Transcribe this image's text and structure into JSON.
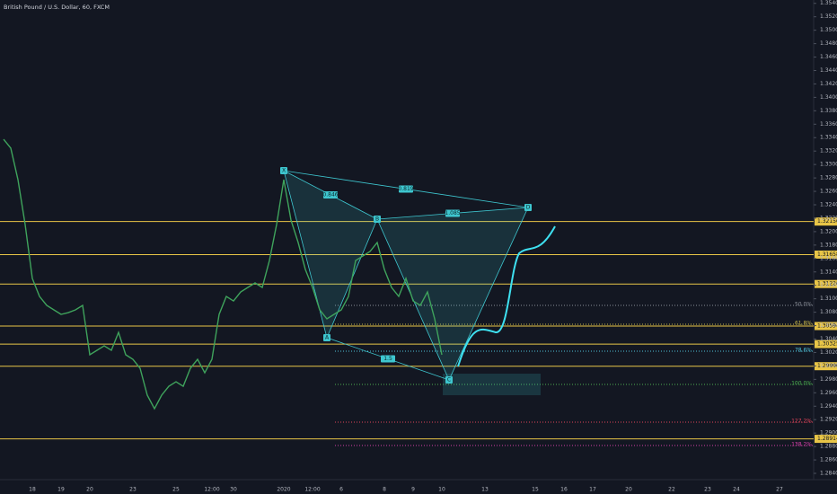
{
  "chart_data": {
    "type": "line",
    "title": "British Pound / U.S. Dollar, 60, FXCM",
    "color": "#3fa35c",
    "categories": [
      null,
      null,
      null,
      null,
      "18",
      null,
      null,
      null,
      "19",
      null,
      null,
      null,
      "20",
      null,
      null,
      null,
      null,
      null,
      "23",
      null,
      null,
      null,
      null,
      null,
      "25",
      null,
      null,
      null,
      null,
      "12:00",
      null,
      null,
      "30",
      null,
      null,
      null,
      null,
      null,
      null,
      "2020",
      null,
      null,
      null,
      "12:00",
      null,
      null,
      null,
      "6",
      null,
      null,
      null,
      null,
      null,
      "8",
      null,
      null,
      null,
      "9",
      null,
      null,
      null,
      "10",
      null,
      null,
      null,
      null,
      null,
      "13",
      null,
      null,
      null,
      null,
      null,
      null,
      "15",
      null,
      null,
      null,
      "16",
      null,
      null,
      null,
      "17",
      null,
      null,
      null,
      null,
      "20",
      null,
      null,
      null,
      null,
      null,
      "22",
      null,
      null,
      null,
      null,
      "23",
      null,
      null,
      null,
      "24",
      null,
      null,
      null,
      null,
      null,
      "27",
      null,
      null,
      null,
      null
    ],
    "values": [
      1.33376,
      1.33243,
      1.32774,
      1.32106,
      1.31303,
      1.31035,
      1.30902,
      1.30835,
      1.30768,
      1.30794,
      1.30835,
      1.30902,
      1.30166,
      1.30233,
      1.30299,
      1.30233,
      1.305,
      1.30166,
      1.30099,
      1.29965,
      1.29564,
      1.29363,
      1.29564,
      1.29697,
      1.29764,
      1.29697,
      1.29965,
      1.30099,
      1.29898,
      1.30099,
      1.30768,
      1.31035,
      1.30968,
      1.31102,
      1.31169,
      1.31236,
      1.31169,
      1.3157,
      1.32106,
      1.32774,
      1.32172,
      1.31838,
      1.31437,
      1.31169,
      1.30835,
      1.30701,
      1.30768,
      1.30835,
      1.31035,
      1.3157,
      1.31637,
      1.31704,
      1.31838,
      1.31437,
      1.31169,
      1.31035,
      1.31303,
      1.30968,
      1.30902,
      1.31102,
      1.30701,
      1.30166,
      null,
      null,
      null,
      null,
      null,
      null,
      null,
      null,
      null,
      null,
      null,
      null,
      null,
      null,
      null,
      null,
      null,
      null,
      null,
      null,
      null,
      null,
      null,
      null,
      null,
      null,
      null,
      null,
      null,
      null,
      null,
      null,
      null,
      null,
      null,
      null,
      null,
      null,
      null,
      null,
      null,
      null,
      null,
      null,
      null,
      null,
      null,
      null,
      null,
      null,
      null
    ],
    "ylim": [
      1.2836,
      1.3545
    ],
    "yticks": [
      {
        "value": 1.284,
        "label": "1.28400"
      },
      {
        "value": 1.286,
        "label": "1.28600"
      },
      {
        "value": 1.288,
        "label": "1.28800"
      },
      {
        "value": 1.29,
        "label": "1.29000"
      },
      {
        "value": 1.292,
        "label": "1.29200"
      },
      {
        "value": 1.294,
        "label": "1.29400"
      },
      {
        "value": 1.296,
        "label": "1.29600"
      },
      {
        "value": 1.298,
        "label": "1.29800"
      },
      {
        "value": 1.3,
        "label": "1.30000"
      },
      {
        "value": 1.302,
        "label": "1.30200"
      },
      {
        "value": 1.304,
        "label": "1.30400"
      },
      {
        "value": 1.306,
        "label": "1.30600"
      },
      {
        "value": 1.308,
        "label": "1.30800"
      },
      {
        "value": 1.31,
        "label": "1.31000"
      },
      {
        "value": 1.312,
        "label": "1.31200"
      },
      {
        "value": 1.314,
        "label": "1.31400"
      },
      {
        "value": 1.316,
        "label": "1.31600"
      },
      {
        "value": 1.318,
        "label": "1.31800"
      },
      {
        "value": 1.32,
        "label": "1.32000"
      },
      {
        "value": 1.322,
        "label": "1.32200"
      },
      {
        "value": 1.324,
        "label": "1.32400"
      },
      {
        "value": 1.326,
        "label": "1.32600"
      },
      {
        "value": 1.328,
        "label": "1.32800"
      },
      {
        "value": 1.33,
        "label": "1.33000"
      },
      {
        "value": 1.332,
        "label": "1.33200"
      },
      {
        "value": 1.334,
        "label": "1.33400"
      },
      {
        "value": 1.336,
        "label": "1.33600"
      },
      {
        "value": 1.338,
        "label": "1.33800"
      },
      {
        "value": 1.34,
        "label": "1.34000"
      },
      {
        "value": 1.342,
        "label": "1.34200"
      },
      {
        "value": 1.344,
        "label": "1.34400"
      },
      {
        "value": 1.346,
        "label": "1.34600"
      },
      {
        "value": 1.348,
        "label": "1.34800"
      },
      {
        "value": 1.35,
        "label": "1.35000"
      },
      {
        "value": 1.352,
        "label": "1.35200"
      },
      {
        "value": 1.354,
        "label": "1.35400"
      }
    ],
    "levels": [
      {
        "value": 1.3215,
        "label": "1.32150"
      },
      {
        "value": 1.31658,
        "label": "1.31658"
      },
      {
        "value": 1.3122,
        "label": "1.31220"
      },
      {
        "value": 1.30594,
        "label": "1.30594"
      },
      {
        "value": 1.30325,
        "label": "1.30325"
      },
      {
        "value": 1.29996,
        "label": "1.29996"
      },
      {
        "value": 1.28914,
        "label": "1.28914"
      }
    ],
    "level_color": "#e8c547",
    "fib_levels": [
      {
        "price": 1.30902,
        "label": "50.0%",
        "color": "#8a8f98"
      },
      {
        "price": 1.30621,
        "label": "61.8%",
        "color": "#c8b84a"
      },
      {
        "price": 1.30219,
        "label": "78.6%",
        "color": "#4fc3d9"
      },
      {
        "price": 1.29724,
        "label": "100.0%",
        "color": "#4caf50"
      },
      {
        "price": 1.29162,
        "label": "127.2%",
        "color": "#e0445a"
      },
      {
        "price": 1.28814,
        "label": "138.2%",
        "color": "#d63fa8"
      }
    ],
    "pattern": {
      "color": "#3ec6cf",
      "points": [
        {
          "label": "X",
          "index": 39,
          "price": 1.32908
        },
        {
          "label": "A",
          "index": 45,
          "price": 1.3042
        },
        {
          "label": "B",
          "index": 52,
          "price": 1.32186
        },
        {
          "label": "C",
          "index": 62,
          "price": 1.29791
        },
        {
          "label": "D",
          "index": 73,
          "price": 1.3236
        }
      ],
      "ratios": [
        "0.846",
        "0.819",
        "1.085",
        "1.5"
      ]
    }
  }
}
